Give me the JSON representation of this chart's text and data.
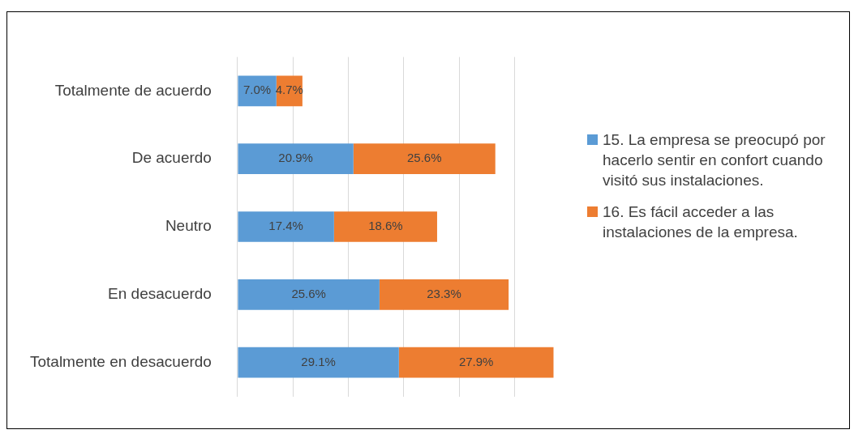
{
  "chart_data": {
    "type": "bar",
    "orientation": "horizontal",
    "stacked": true,
    "grid": "x",
    "tick_labels": "y",
    "legend": "right",
    "categories": [
      "Totalmente de acuerdo",
      "De acuerdo",
      "Neutro",
      "En desacuerdo",
      "Totalmente en desacuerdo"
    ],
    "series": [
      {
        "name": "15.  La empresa se preocupó por hacerlo sentir en confort cuando visitó sus instalaciones.",
        "color": "#5b9bd5",
        "values": [
          7.0,
          20.9,
          17.4,
          25.6,
          29.1
        ],
        "value_labels": [
          "7.0%",
          "20.9%",
          "17.4%",
          "25.6%",
          "29.1%"
        ]
      },
      {
        "name": "16.  Es fácil acceder a las instalaciones de la empresa.",
        "color": "#ed7d31",
        "values": [
          4.7,
          25.6,
          18.6,
          23.3,
          27.9
        ],
        "value_labels": [
          "4.7%",
          "25.6%",
          "18.6%",
          "23.3%",
          "27.9%"
        ]
      }
    ]
  }
}
